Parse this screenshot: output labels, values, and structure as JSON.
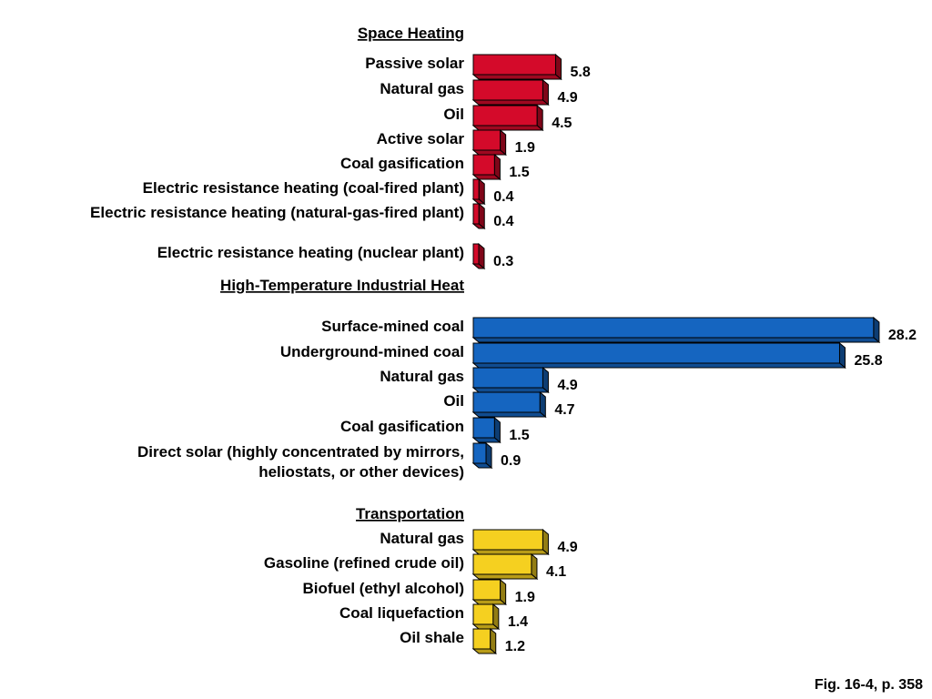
{
  "caption": "Fig. 16-4, p. 358",
  "chart_data": [
    {
      "type": "bar",
      "orientation": "horizontal",
      "title": "Space Heating",
      "color": "#d40a2a",
      "categories": [
        "Passive solar",
        "Natural gas",
        "Oil",
        "Active solar",
        "Coal gasification",
        "Electric resistance heating (coal-fired plant)",
        "Electric resistance heating (natural-gas-fired plant)",
        "Electric resistance heating (nuclear plant)"
      ],
      "values": [
        5.8,
        4.9,
        4.5,
        1.9,
        1.5,
        0.4,
        0.4,
        0.3
      ],
      "value_labels": [
        "5.8",
        "4.9",
        "4.5",
        "1.9",
        "1.5",
        "0.4",
        "0.4",
        "0.3"
      ]
    },
    {
      "type": "bar",
      "orientation": "horizontal",
      "title": "High-Temperature Industrial Heat",
      "color": "#1565c0",
      "categories": [
        "Surface-mined coal",
        "Underground-mined coal",
        "Natural gas",
        "Oil",
        "Coal gasification",
        "Direct solar (highly concentrated by mirrors,\nheliostats, or other devices)"
      ],
      "values": [
        28.2,
        25.8,
        4.9,
        4.7,
        1.5,
        0.9
      ],
      "value_labels": [
        "28.2",
        "25.8",
        "4.9",
        "4.7",
        "1.5",
        "0.9"
      ]
    },
    {
      "type": "bar",
      "orientation": "horizontal",
      "title": "Transportation",
      "color": "#f5d020",
      "categories": [
        "Natural gas",
        "Gasoline (refined crude oil)",
        "Biofuel (ethyl alcohol)",
        "Coal liquefaction",
        "Oil shale"
      ],
      "values": [
        4.9,
        4.1,
        1.9,
        1.4,
        1.2
      ],
      "value_labels": [
        "4.9",
        "4.1",
        "1.9",
        "1.4",
        "1.2"
      ]
    }
  ]
}
